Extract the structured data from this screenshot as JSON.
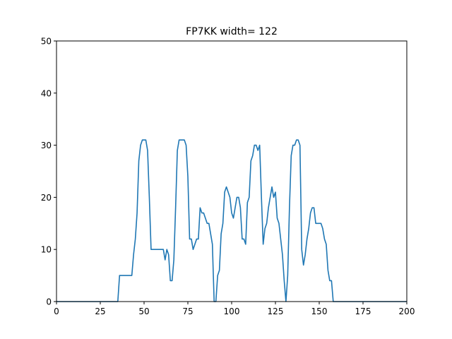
{
  "chart_data": {
    "type": "line",
    "title": "FP7KK width= 122",
    "xlabel": "",
    "ylabel": "",
    "xlim": [
      0,
      200
    ],
    "ylim": [
      0,
      50
    ],
    "xticks": [
      0,
      25,
      50,
      75,
      100,
      125,
      150,
      175,
      200
    ],
    "yticks": [
      0,
      10,
      20,
      30,
      40,
      50
    ],
    "grid": false,
    "series": [
      {
        "color": "#1f77b4",
        "points": [
          [
            0,
            0
          ],
          [
            35,
            0
          ],
          [
            36,
            5
          ],
          [
            43,
            5
          ],
          [
            44,
            9
          ],
          [
            45,
            12
          ],
          [
            46,
            17
          ],
          [
            47,
            27
          ],
          [
            48,
            30
          ],
          [
            49,
            31
          ],
          [
            51,
            31
          ],
          [
            52,
            29
          ],
          [
            53,
            20
          ],
          [
            54,
            10
          ],
          [
            61,
            10
          ],
          [
            62,
            8
          ],
          [
            63,
            10
          ],
          [
            64,
            9
          ],
          [
            65,
            4
          ],
          [
            66,
            4
          ],
          [
            67,
            8
          ],
          [
            68,
            18
          ],
          [
            69,
            29
          ],
          [
            70,
            31
          ],
          [
            73,
            31
          ],
          [
            74,
            30
          ],
          [
            75,
            24
          ],
          [
            76,
            12
          ],
          [
            77,
            12
          ],
          [
            78,
            10
          ],
          [
            79,
            11
          ],
          [
            80,
            12
          ],
          [
            81,
            12
          ],
          [
            82,
            18
          ],
          [
            83,
            17
          ],
          [
            84,
            17
          ],
          [
            85,
            16
          ],
          [
            86,
            15
          ],
          [
            87,
            15
          ],
          [
            88,
            13
          ],
          [
            89,
            11
          ],
          [
            90,
            0
          ],
          [
            91,
            0
          ],
          [
            92,
            5
          ],
          [
            93,
            6
          ],
          [
            94,
            13
          ],
          [
            95,
            15
          ],
          [
            96,
            21
          ],
          [
            97,
            22
          ],
          [
            98,
            21
          ],
          [
            99,
            20
          ],
          [
            100,
            17
          ],
          [
            101,
            16
          ],
          [
            102,
            18
          ],
          [
            103,
            20
          ],
          [
            104,
            20
          ],
          [
            105,
            18
          ],
          [
            106,
            12
          ],
          [
            107,
            12
          ],
          [
            108,
            11
          ],
          [
            109,
            19
          ],
          [
            110,
            20
          ],
          [
            111,
            27
          ],
          [
            112,
            28
          ],
          [
            113,
            30
          ],
          [
            114,
            30
          ],
          [
            115,
            29
          ],
          [
            116,
            30
          ],
          [
            117,
            20
          ],
          [
            118,
            11
          ],
          [
            119,
            14
          ],
          [
            120,
            15
          ],
          [
            121,
            18
          ],
          [
            122,
            20
          ],
          [
            123,
            22
          ],
          [
            124,
            20
          ],
          [
            125,
            21
          ],
          [
            126,
            16
          ],
          [
            127,
            15
          ],
          [
            128,
            12
          ],
          [
            129,
            9
          ],
          [
            130,
            4
          ],
          [
            131,
            0
          ],
          [
            132,
            5
          ],
          [
            133,
            18
          ],
          [
            134,
            28
          ],
          [
            135,
            30
          ],
          [
            136,
            30
          ],
          [
            137,
            31
          ],
          [
            138,
            31
          ],
          [
            139,
            30
          ],
          [
            140,
            10
          ],
          [
            141,
            7
          ],
          [
            142,
            9
          ],
          [
            143,
            12
          ],
          [
            144,
            14
          ],
          [
            145,
            17
          ],
          [
            146,
            18
          ],
          [
            147,
            18
          ],
          [
            148,
            15
          ],
          [
            151,
            15
          ],
          [
            152,
            14
          ],
          [
            153,
            12
          ],
          [
            154,
            11
          ],
          [
            155,
            6
          ],
          [
            156,
            4
          ],
          [
            157,
            4
          ],
          [
            158,
            0
          ],
          [
            200,
            0
          ]
        ]
      }
    ]
  }
}
